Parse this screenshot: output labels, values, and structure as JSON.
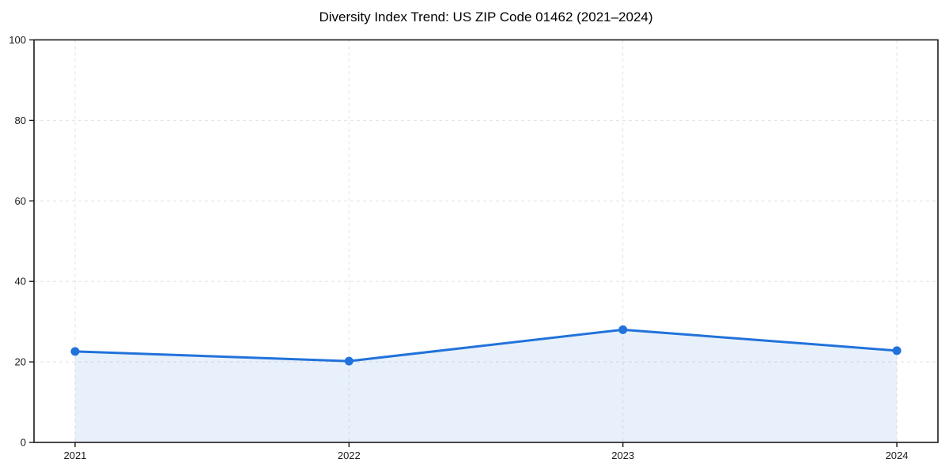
{
  "chart_data": {
    "type": "line",
    "title": "Diversity Index Trend: US ZIP Code 01462 (2021–2024)",
    "x": [
      2021,
      2022,
      2023,
      2024
    ],
    "xticks": [
      "2021",
      "2022",
      "2023",
      "2024"
    ],
    "series": [
      {
        "name": "Diversity Index",
        "values": [
          22.6,
          20.2,
          28.0,
          22.8
        ]
      }
    ],
    "ylabel": "",
    "xlabel": "",
    "ylim": [
      0,
      100
    ],
    "yticks": [
      0,
      20,
      40,
      60,
      80,
      100
    ],
    "x_padding_fraction": 0.05,
    "grid": true,
    "grid_style": "dashed",
    "legend": "none",
    "area_fill_to_zero": true,
    "colors": {
      "line": "#2272db",
      "marker": "#2272db",
      "fill": "#2272db",
      "fill_opacity": 0.1,
      "grid": "#e2e2e2",
      "axis": "#1a1a1a",
      "tick_label": "#1a1a1a",
      "title": "#000000",
      "background": "#ffffff"
    }
  }
}
